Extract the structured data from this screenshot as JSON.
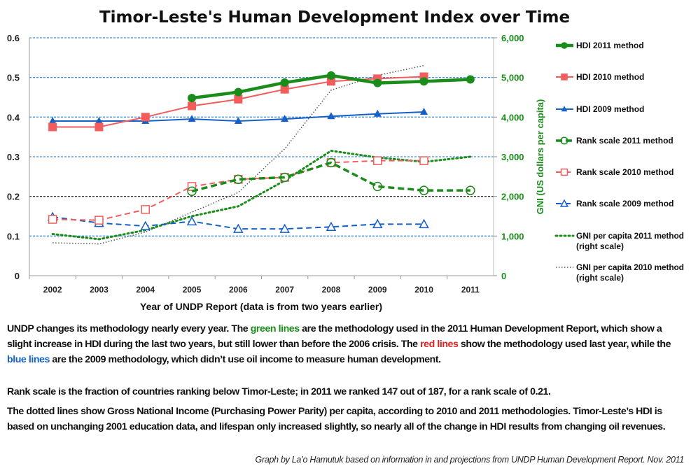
{
  "chart_data": {
    "type": "line",
    "title": "Timor-Leste's Human Development Index over Time",
    "xlabel": "Year of UNDP Report (data is from two years earlier)",
    "ylabel": "",
    "y2label": "GNI (US dollars per capita)",
    "categories": [
      "2002",
      "2003",
      "2004",
      "2005",
      "2006",
      "2007",
      "2008",
      "2009",
      "2010",
      "2011"
    ],
    "ylim": [
      0,
      0.6
    ],
    "yticks": [
      "0",
      "0.1",
      "0.2",
      "0.3",
      "0.4",
      "0.5",
      "0.6"
    ],
    "y2lim": [
      0,
      6000
    ],
    "y2ticks": [
      "0",
      "1,000",
      "2,000",
      "3,000",
      "4,000",
      "5,000",
      "6,000"
    ],
    "grid": true,
    "legend_position": "right",
    "series": [
      {
        "name": "HDI 2011 method",
        "axis": "left",
        "color": "#1a8c1a",
        "style": "solid-thick",
        "marker": "filled-circle",
        "values": [
          null,
          null,
          null,
          0.448,
          0.463,
          0.487,
          0.505,
          0.486,
          0.49,
          0.495
        ]
      },
      {
        "name": "HDI 2010 method",
        "axis": "left",
        "color": "#f25c5c",
        "style": "solid",
        "marker": "filled-square",
        "values": [
          0.375,
          0.375,
          0.4,
          0.428,
          0.445,
          0.47,
          0.49,
          0.497,
          0.502,
          null
        ]
      },
      {
        "name": "HDI 2009 method",
        "axis": "left",
        "color": "#1460c8",
        "style": "solid",
        "marker": "filled-triangle",
        "values": [
          0.39,
          0.39,
          0.39,
          0.395,
          0.39,
          0.395,
          0.402,
          0.408,
          0.413,
          null
        ]
      },
      {
        "name": "Rank scale 2011 method",
        "axis": "left",
        "color": "#1a8c1a",
        "style": "dashed-thick",
        "marker": "open-circle",
        "values": [
          null,
          null,
          null,
          0.213,
          0.243,
          0.248,
          0.285,
          0.225,
          0.215,
          0.215
        ]
      },
      {
        "name": "Rank scale 2010 method",
        "axis": "left",
        "color": "#f25c5c",
        "style": "dashed",
        "marker": "open-square",
        "values": [
          0.142,
          0.14,
          0.167,
          0.225,
          0.243,
          0.248,
          0.285,
          0.29,
          0.29,
          null
        ]
      },
      {
        "name": "Rank scale 2009 method",
        "axis": "left",
        "color": "#1460c8",
        "style": "dashed",
        "marker": "open-triangle",
        "values": [
          0.148,
          0.133,
          0.125,
          0.137,
          0.118,
          0.118,
          0.123,
          0.13,
          0.13,
          null
        ]
      },
      {
        "name": "GNI per capita 2011 method",
        "name2": "(right scale)",
        "axis": "right",
        "color": "#1a8c1a",
        "style": "dotted-thick",
        "marker": "none",
        "values": [
          1050,
          920,
          1150,
          1500,
          1750,
          2400,
          3150,
          2980,
          2870,
          3000
        ]
      },
      {
        "name": "GNI per capita 2010 method",
        "name2": "(right scale)",
        "axis": "right",
        "color": "#555555",
        "style": "dotted",
        "marker": "none",
        "values": [
          830,
          800,
          1100,
          1600,
          2100,
          3200,
          4680,
          5050,
          5300,
          null
        ]
      }
    ]
  },
  "text": {
    "p1": [
      {
        "t": "UNDP changes its methodology nearly every year. The ",
        "c": ""
      },
      {
        "t": "green lines",
        "c": "#1a8c1a"
      },
      {
        "t": " are the methodology used in the 2011 Human Development Report, which show a slight increase in HDI during the last two years, but still lower than before the 2006 crisis. The ",
        "c": ""
      },
      {
        "t": "red lines",
        "c": "#e02020"
      },
      {
        "t": " show the methodology used last year, while the ",
        "c": ""
      },
      {
        "t": "blue lines",
        "c": "#1460c8"
      },
      {
        "t": " are the 2009 methodology, which didn’t use oil income to measure human development.",
        "c": ""
      }
    ],
    "p2": "Rank scale is the fraction of countries ranking below Timor-Leste; in 2011 we ranked 147 out of 187, for a rank scale of 0.21.",
    "p3": "The dotted lines show Gross National Income (Purchasing Power Parity) per capita, according to 2010 and 2011 methodologies. Timor-Leste’s HDI is based on unchanging 2001 education data, and lifespan only increased slightly, so nearly all of the change in HDI results from changing oil revenues.",
    "credit": "Graph by La’o Hamutuk based on information in and projections from UNDP Human Development Report.   Nov. 2011"
  }
}
